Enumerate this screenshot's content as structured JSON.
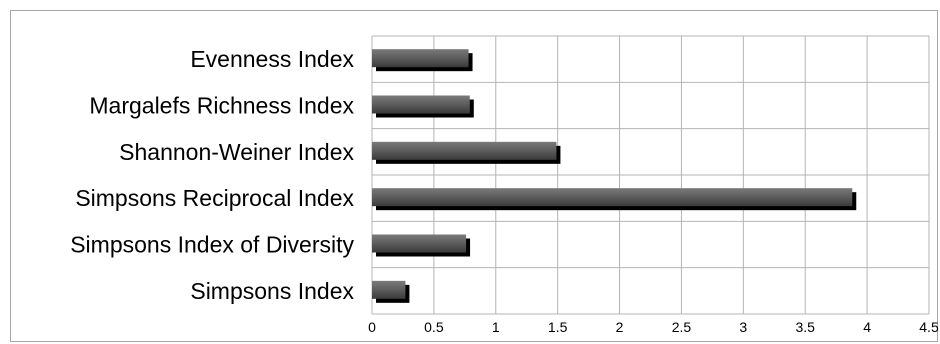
{
  "chart_data": {
    "type": "bar",
    "orientation": "horizontal",
    "title": "",
    "xlabel": "",
    "ylabel": "",
    "categories": [
      "Simpsons Index",
      "Simpsons Index of Diversity",
      "Simpsons Reciprocal Index",
      "Shannon-Weiner Index",
      "Margalefs Richness Index",
      "Evenness Index"
    ],
    "values": [
      0.27,
      0.76,
      3.88,
      1.49,
      0.79,
      0.78
    ],
    "xlim": [
      0,
      4.5
    ],
    "xticks": [
      0,
      0.5,
      1,
      1.5,
      2,
      2.5,
      3,
      3.5,
      4,
      4.5
    ],
    "xtick_labels": [
      "0",
      "0.5",
      "1",
      "1.5",
      "2",
      "2.5",
      "3",
      "3.5",
      "4",
      "4.5"
    ],
    "grid": true,
    "legend": "none",
    "colors": {
      "bar": "#5a5a5a",
      "bar_shadow": "#000000",
      "grid": "#b4b4b4",
      "frame": "#a8a8a8"
    }
  }
}
